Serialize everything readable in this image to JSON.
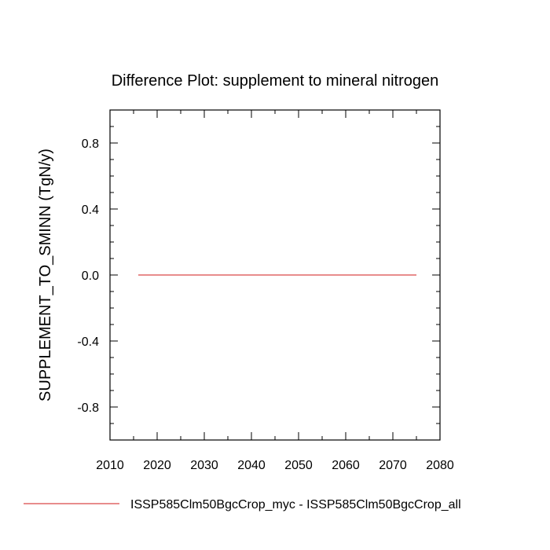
{
  "chart_data": {
    "type": "line",
    "title": "Difference Plot: supplement to mineral nitrogen",
    "ylabel": "SUPPLEMENT_TO_SMINN  (TgN/y)",
    "xlabel": "",
    "xlim": [
      2010,
      2080
    ],
    "ylim": [
      -1.0,
      1.0
    ],
    "x_major_ticks": [
      2010,
      2020,
      2030,
      2040,
      2050,
      2060,
      2070,
      2080
    ],
    "x_minor_step": 5,
    "y_major_ticks": [
      -0.8,
      -0.4,
      0.0,
      0.4,
      0.8
    ],
    "y_tick_labels": [
      "-0.8",
      "-0.4",
      "0.0",
      "0.4",
      "0.8"
    ],
    "y_minor_step": 0.1,
    "grid": false,
    "legend_position": "bottom",
    "series": [
      {
        "name": "ISSP585Clm50BgcCrop_myc - ISSP585Clm50BgcCrop_all",
        "color": "#e06666",
        "x": [
          2016,
          2075
        ],
        "values": [
          0.0,
          0.0
        ]
      }
    ]
  }
}
